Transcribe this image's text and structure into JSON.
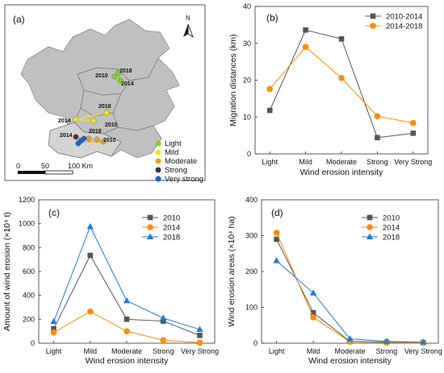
{
  "colors": {
    "gray": "#555555",
    "orange": "#ff8c00",
    "blue": "#1f7ae0",
    "light": "#7ed321",
    "mild": "#f5e61e",
    "moderate": "#e8a317",
    "strong": "#3a3a3a",
    "very_strong": "#1a5fd6",
    "map_fill": "#c0c0c0"
  },
  "map": {
    "panel_label": "(a)",
    "north": "N",
    "scale_labels": [
      "0",
      "50",
      "100 Km"
    ],
    "legend": [
      {
        "label": "Light",
        "color": "#7ed321"
      },
      {
        "label": "Mild",
        "color": "#f5e61e"
      },
      {
        "label": "Moderate",
        "color": "#e8a317"
      },
      {
        "label": "Strong",
        "color": "#3a3a3a"
      },
      {
        "label": "Very strong",
        "color": "#1a5fd6"
      }
    ],
    "point_labels": [
      "2010",
      "2018",
      "2014",
      "2018",
      "2014",
      "2010",
      "2014",
      "2018",
      "2010"
    ]
  },
  "chart_data": [
    {
      "panel": "(b)",
      "type": "line",
      "categories": [
        "Light",
        "Mild",
        "Moderate",
        "Strong",
        "Very Strong"
      ],
      "xlabel": "Wind erosion intensity",
      "ylabel": "Migration distances (km)",
      "ylim": [
        0,
        40
      ],
      "yticks": [
        0,
        10,
        20,
        30,
        40
      ],
      "legend_position": "top-right",
      "series": [
        {
          "name": "2010-2014",
          "marker": "square",
          "color": "#555555",
          "values": [
            11.8,
            33.6,
            31.2,
            4.4,
            5.6
          ]
        },
        {
          "name": "2014-2018",
          "marker": "circle",
          "color": "#ff8c00",
          "values": [
            17.6,
            29.0,
            20.6,
            10.2,
            8.4
          ]
        }
      ]
    },
    {
      "panel": "(c)",
      "type": "line",
      "categories": [
        "Light",
        "Mild",
        "Moderate",
        "Strong",
        "Very Strong"
      ],
      "xlabel": "Wind erosion intensity",
      "ylabel": "Amount of wind erosion (×10⁴ t)",
      "ylim": [
        0,
        1200
      ],
      "yticks": [
        0,
        200,
        400,
        600,
        800,
        1000,
        1200
      ],
      "legend_position": "top-right",
      "series": [
        {
          "name": "2010",
          "marker": "square",
          "color": "#555555",
          "values": [
            120,
            735,
            200,
            185,
            65
          ]
        },
        {
          "name": "2014",
          "marker": "circle",
          "color": "#ff8c00",
          "values": [
            90,
            265,
            100,
            25,
            5
          ]
        },
        {
          "name": "2018",
          "marker": "triangle",
          "color": "#1f7ae0",
          "values": [
            180,
            975,
            355,
            210,
            115
          ]
        }
      ]
    },
    {
      "panel": "(d)",
      "type": "line",
      "categories": [
        "Light",
        "Mild",
        "Moderate",
        "Strong",
        "Very Strong"
      ],
      "xlabel": "Wind erosion intensity",
      "ylabel": "Wind erosion areas (×10⁴ ha)",
      "ylim": [
        0,
        400
      ],
      "yticks": [
        0,
        100,
        200,
        300,
        400
      ],
      "legend_position": "top-right",
      "series": [
        {
          "name": "2010",
          "marker": "square",
          "color": "#555555",
          "values": [
            290,
            85,
            5,
            3,
            2
          ]
        },
        {
          "name": "2014",
          "marker": "circle",
          "color": "#ff8c00",
          "values": [
            308,
            72,
            4,
            2,
            1
          ]
        },
        {
          "name": "2018",
          "marker": "triangle",
          "color": "#1f7ae0",
          "values": [
            230,
            140,
            12,
            5,
            3
          ]
        }
      ]
    }
  ]
}
